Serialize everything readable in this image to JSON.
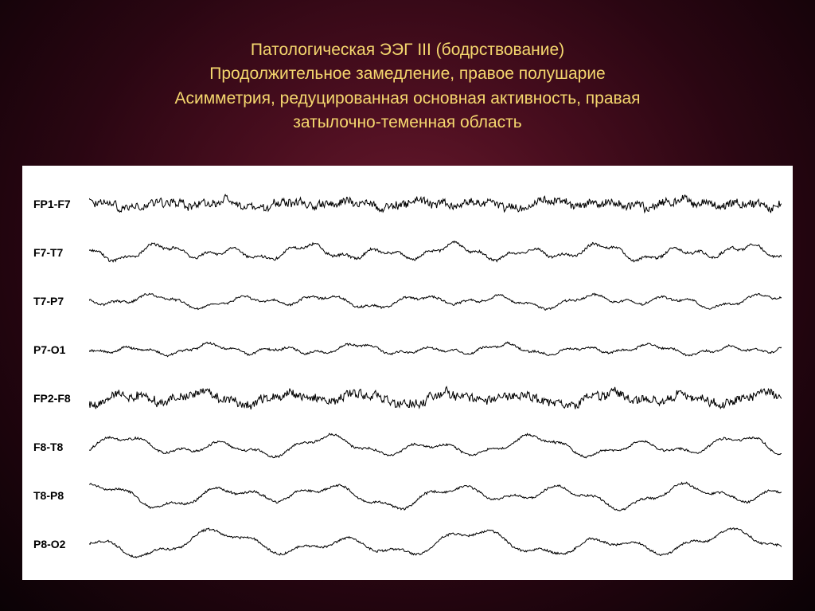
{
  "title": {
    "lines": [
      "Патологическая ЭЭГ III (бодрствование)",
      "Продолжительное замедление, правое полушарие",
      "Асимметрия, редуцированная основная активность, правая",
      "затылочно-теменная область"
    ],
    "color": "#f5d76e",
    "fontsize": 21
  },
  "eeg": {
    "background": "#ffffff",
    "stroke_color": "#000000",
    "stroke_width": 1,
    "label_fontsize": 14,
    "label_weight": "bold",
    "channels": [
      {
        "label": "FP1-F7",
        "base_amp": 4,
        "hf_amp": 3.5,
        "slow_amp": 3,
        "slow_freq": 0.08,
        "hf_freq": 1.4,
        "seed": 1
      },
      {
        "label": "F7-T7",
        "base_amp": 6,
        "hf_amp": 1.2,
        "slow_amp": 6,
        "slow_freq": 0.07,
        "hf_freq": 0.9,
        "seed": 2
      },
      {
        "label": "T7-P7",
        "base_amp": 5,
        "hf_amp": 1.0,
        "slow_amp": 5,
        "slow_freq": 0.06,
        "hf_freq": 0.8,
        "seed": 3
      },
      {
        "label": "P7-O1",
        "base_amp": 4,
        "hf_amp": 1.0,
        "slow_amp": 4,
        "slow_freq": 0.07,
        "hf_freq": 0.85,
        "seed": 4
      },
      {
        "label": "FP2-F8",
        "base_amp": 5,
        "hf_amp": 3.8,
        "slow_amp": 5,
        "slow_freq": 0.065,
        "hf_freq": 1.5,
        "seed": 5
      },
      {
        "label": "F8-T8",
        "base_amp": 7,
        "hf_amp": 1.0,
        "slow_amp": 8,
        "slow_freq": 0.05,
        "hf_freq": 0.7,
        "seed": 6
      },
      {
        "label": "T8-P8",
        "base_amp": 8,
        "hf_amp": 1.0,
        "slow_amp": 9,
        "slow_freq": 0.045,
        "hf_freq": 0.6,
        "seed": 7
      },
      {
        "label": "P8-O2",
        "base_amp": 9,
        "hf_amp": 1.0,
        "slow_amp": 10,
        "slow_freq": 0.04,
        "hf_freq": 0.55,
        "seed": 8
      }
    ],
    "trace_points": 840
  },
  "colors": {
    "bg_inner": "#6b1a2e",
    "bg_mid": "#4a0e1f",
    "bg_outer": "#0a0205"
  }
}
